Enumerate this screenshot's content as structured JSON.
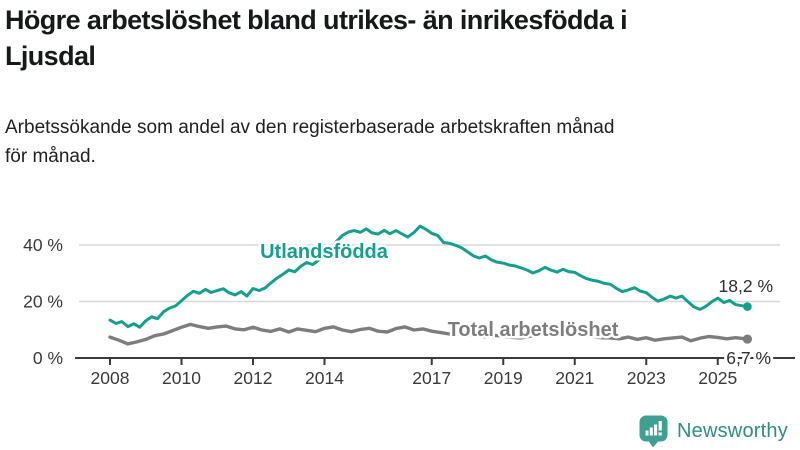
{
  "title": "Högre arbetslöshet bland utrikes- än inrikesfödda i\nLjusdal",
  "subtitle": "Arbetssökande som andel av den registerbaserade arbetskraften månad\nför månad.",
  "footer": {
    "brand": "Newsworthy"
  },
  "colors": {
    "teal": "#14a08f",
    "gray": "#7d7d7d",
    "grid": "#d8d8d8",
    "axis": "#3a3a3a",
    "value_label": "#2e2e2e",
    "logo_bg": "#3fa091",
    "logo_glyph": "#ffffff",
    "logo_text": "#2e8f82"
  },
  "chart_data": {
    "type": "line",
    "title": "Arbetssökande som andel av den registerbaserade arbetskraften månad för månad",
    "xlabel": "",
    "ylabel": "",
    "grid": true,
    "legend_position": "inline-labels",
    "y_axis": {
      "range": [
        0,
        52
      ],
      "ticks": [
        {
          "value": 0,
          "label": "0 %"
        },
        {
          "value": 20,
          "label": "20 %"
        },
        {
          "value": 40,
          "label": "40 %"
        }
      ]
    },
    "x_axis": {
      "range": [
        2007.7,
        2026.2
      ],
      "ticks": [
        2008,
        2010,
        2012,
        2014,
        2017,
        2019,
        2021,
        2023,
        2025
      ]
    },
    "series": [
      {
        "name": "Utlandsfödda",
        "color": "#14a08f",
        "end_label": "18,2 %",
        "end_value": 18.2,
        "x": [
          2008.0,
          2008.17,
          2008.33,
          2008.5,
          2008.67,
          2008.83,
          2009.0,
          2009.17,
          2009.33,
          2009.5,
          2009.67,
          2009.83,
          2010.0,
          2010.17,
          2010.33,
          2010.5,
          2010.67,
          2010.83,
          2011.0,
          2011.17,
          2011.33,
          2011.5,
          2011.67,
          2011.83,
          2012.0,
          2012.17,
          2012.33,
          2012.5,
          2012.67,
          2012.83,
          2013.0,
          2013.17,
          2013.33,
          2013.5,
          2013.67,
          2013.83,
          2014.0,
          2014.17,
          2014.33,
          2014.5,
          2014.67,
          2014.83,
          2015.0,
          2015.17,
          2015.33,
          2015.5,
          2015.67,
          2015.83,
          2016.0,
          2016.17,
          2016.33,
          2016.5,
          2016.67,
          2016.83,
          2017.0,
          2017.17,
          2017.33,
          2017.5,
          2017.67,
          2017.83,
          2018.0,
          2018.17,
          2018.33,
          2018.5,
          2018.67,
          2018.83,
          2019.0,
          2019.17,
          2019.33,
          2019.5,
          2019.67,
          2019.83,
          2020.0,
          2020.17,
          2020.33,
          2020.5,
          2020.67,
          2020.83,
          2021.0,
          2021.17,
          2021.33,
          2021.5,
          2021.67,
          2021.83,
          2022.0,
          2022.17,
          2022.33,
          2022.5,
          2022.67,
          2022.83,
          2023.0,
          2023.17,
          2023.33,
          2023.5,
          2023.67,
          2023.83,
          2024.0,
          2024.17,
          2024.33,
          2024.5,
          2024.67,
          2024.83,
          2025.0,
          2025.17,
          2025.33,
          2025.5,
          2025.67,
          2025.83
        ],
        "values": [
          13.4,
          12.2,
          12.9,
          11.1,
          12.1,
          10.9,
          13.2,
          14.6,
          13.9,
          16.4,
          17.7,
          18.4,
          20.3,
          22.2,
          23.6,
          22.9,
          24.3,
          23.2,
          23.9,
          24.5,
          23.1,
          22.3,
          23.5,
          21.9,
          24.6,
          23.9,
          24.7,
          26.6,
          28.3,
          29.6,
          31.2,
          30.5,
          32.4,
          33.8,
          33.1,
          34.6,
          36.0,
          38.3,
          41.2,
          43.4,
          44.6,
          45.1,
          44.5,
          45.7,
          44.3,
          43.9,
          45.2,
          44.0,
          45.1,
          43.9,
          42.8,
          44.4,
          46.7,
          45.6,
          44.1,
          43.4,
          40.9,
          40.6,
          39.9,
          39.0,
          37.6,
          36.1,
          35.4,
          36.1,
          34.7,
          33.9,
          33.6,
          32.9,
          32.6,
          31.9,
          31.1,
          30.1,
          30.9,
          32.1,
          31.1,
          30.4,
          31.4,
          30.6,
          30.3,
          29.1,
          28.1,
          27.5,
          27.1,
          26.4,
          26.1,
          24.6,
          23.5,
          24.1,
          24.9,
          23.7,
          23.1,
          21.4,
          20.1,
          20.9,
          21.9,
          21.2,
          21.9,
          19.9,
          18.1,
          17.2,
          18.3,
          19.9,
          21.2,
          19.6,
          20.4,
          18.9,
          18.5,
          18.2
        ]
      },
      {
        "name": "Total arbetslöshet",
        "color": "#7d7d7d",
        "end_label": "6,7 %",
        "end_value": 6.7,
        "x": [
          2008.0,
          2008.25,
          2008.5,
          2008.75,
          2009.0,
          2009.25,
          2009.5,
          2009.75,
          2010.0,
          2010.25,
          2010.5,
          2010.75,
          2011.0,
          2011.25,
          2011.5,
          2011.75,
          2012.0,
          2012.25,
          2012.5,
          2012.75,
          2013.0,
          2013.25,
          2013.5,
          2013.75,
          2014.0,
          2014.25,
          2014.5,
          2014.75,
          2015.0,
          2015.25,
          2015.5,
          2015.75,
          2016.0,
          2016.25,
          2016.5,
          2016.75,
          2017.0,
          2017.25,
          2017.5,
          2017.75,
          2018.0,
          2018.25,
          2018.5,
          2018.75,
          2019.0,
          2019.25,
          2019.5,
          2019.75,
          2020.0,
          2020.25,
          2020.5,
          2020.75,
          2021.0,
          2021.25,
          2021.5,
          2021.75,
          2022.0,
          2022.25,
          2022.5,
          2022.75,
          2023.0,
          2023.25,
          2023.5,
          2023.75,
          2024.0,
          2024.25,
          2024.5,
          2024.75,
          2025.0,
          2025.25,
          2025.5,
          2025.83
        ],
        "values": [
          7.4,
          6.3,
          5.0,
          5.7,
          6.6,
          7.9,
          8.5,
          9.7,
          10.9,
          11.9,
          11.1,
          10.5,
          11.0,
          11.3,
          10.3,
          10.0,
          10.9,
          9.9,
          9.4,
          10.3,
          9.2,
          10.3,
          9.8,
          9.3,
          10.5,
          11.0,
          9.9,
          9.3,
          10.1,
          10.5,
          9.5,
          9.2,
          10.4,
          11.0,
          9.9,
          10.3,
          9.5,
          9.0,
          8.5,
          8.9,
          8.3,
          7.9,
          7.5,
          8.0,
          7.7,
          7.3,
          7.1,
          7.7,
          8.3,
          9.3,
          9.1,
          8.6,
          8.3,
          7.9,
          7.5,
          7.2,
          7.1,
          6.8,
          7.4,
          6.6,
          7.2,
          6.3,
          6.8,
          7.1,
          7.4,
          6.1,
          7.0,
          7.6,
          7.3,
          6.8,
          7.2,
          6.7
        ]
      }
    ]
  }
}
